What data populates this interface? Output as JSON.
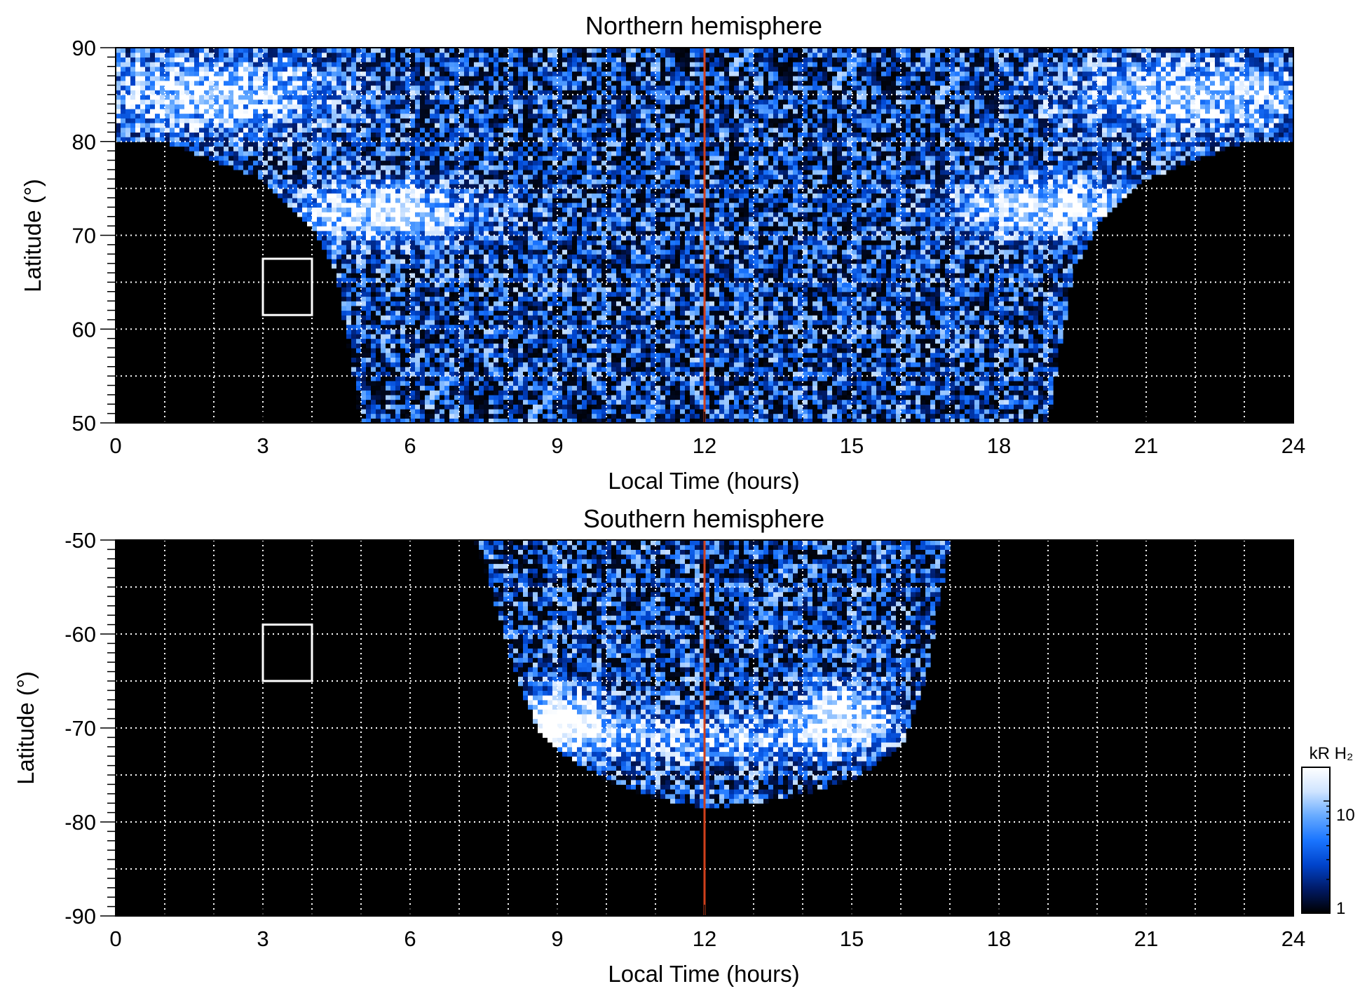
{
  "colors": {
    "background": "#ffffff",
    "plot_background": "#000000",
    "grid": "#ffffff",
    "noon_line": "#d0401c",
    "box": "#ffffff",
    "colormap": [
      "#000000",
      "#001a66",
      "#0044cc",
      "#1a75ff",
      "#66aaff",
      "#cfe4ff",
      "#ffffff"
    ]
  },
  "chart_data": [
    {
      "type": "heatmap",
      "title": "Northern hemisphere",
      "xlabel": "Local Time (hours)",
      "ylabel": "Latitude (°)",
      "xlim": [
        0,
        24
      ],
      "ylim": [
        50,
        90
      ],
      "xticks": [
        "0",
        "3",
        "6",
        "9",
        "12",
        "15",
        "18",
        "21",
        "24"
      ],
      "yticks": [
        "50",
        "60",
        "70",
        "80",
        "90"
      ],
      "grid": true,
      "grid_x_step": 1,
      "grid_y_step": 5,
      "marker_line": {
        "local_time": 12
      },
      "box": {
        "lt_range": [
          3,
          4
        ],
        "lat_range": [
          61.5,
          67.5
        ]
      },
      "coverage_boundary": [
        [
          0,
          80
        ],
        [
          1,
          80
        ],
        [
          2,
          78
        ],
        [
          3,
          76
        ],
        [
          4,
          71
        ],
        [
          4.5,
          66
        ],
        [
          5,
          50
        ],
        [
          19,
          50
        ],
        [
          19.5,
          66
        ],
        [
          20,
          71
        ],
        [
          21,
          76
        ],
        [
          22,
          78
        ],
        [
          23,
          80
        ],
        [
          24,
          80
        ]
      ],
      "bright_bands": [
        {
          "lt": 5.5,
          "lat": 72.5,
          "lt_spread": 1.8,
          "lat_spread": 3,
          "intensity": 0.9
        },
        {
          "lt": 19,
          "lat": 73,
          "lt_spread": 1.8,
          "lat_spread": 3,
          "intensity": 0.9
        },
        {
          "lt": 2,
          "lat": 85,
          "lt_spread": 2.5,
          "lat_spread": 4,
          "intensity": 0.75
        },
        {
          "lt": 22,
          "lat": 85,
          "lt_spread": 2.5,
          "lat_spread": 4,
          "intensity": 0.75
        }
      ]
    },
    {
      "type": "heatmap",
      "title": "Southern hemisphere",
      "xlabel": "Local Time (hours)",
      "ylabel": "Latitude (°)",
      "xlim": [
        0,
        24
      ],
      "ylim": [
        -90,
        -50
      ],
      "xticks": [
        "0",
        "3",
        "6",
        "9",
        "12",
        "15",
        "18",
        "21",
        "24"
      ],
      "yticks": [
        "-90",
        "-80",
        "-70",
        "-60",
        "-50"
      ],
      "grid": true,
      "grid_x_step": 1,
      "grid_y_step": 5,
      "marker_line": {
        "local_time": 12
      },
      "box": {
        "lt_range": [
          3,
          4
        ],
        "lat_range": [
          -65,
          -59
        ]
      },
      "coverage_boundary": [
        [
          7.3,
          -50
        ],
        [
          7.7,
          -56
        ],
        [
          8.2,
          -65
        ],
        [
          8.6,
          -70
        ],
        [
          9,
          -72.5
        ],
        [
          10,
          -75.5
        ],
        [
          11,
          -77.5
        ],
        [
          12,
          -78.5
        ],
        [
          13,
          -78
        ],
        [
          14,
          -77
        ],
        [
          15,
          -75.5
        ],
        [
          16,
          -72
        ],
        [
          16.5,
          -65
        ],
        [
          17,
          -50
        ]
      ],
      "bright_bands": [
        {
          "lt": 9,
          "lat": -69,
          "lt_spread": 0.9,
          "lat_spread": 3,
          "intensity": 1.0
        },
        {
          "lt": 14.8,
          "lat": -68.5,
          "lt_spread": 0.9,
          "lat_spread": 3,
          "intensity": 0.85
        },
        {
          "lt": 12,
          "lat": -71,
          "lt_spread": 4,
          "lat_spread": 2.5,
          "intensity": 0.55
        }
      ]
    }
  ],
  "colorbar": {
    "title": "kR H₂",
    "scale": "log",
    "range": [
      1,
      20
    ],
    "ticks": [
      "1",
      "10"
    ]
  }
}
